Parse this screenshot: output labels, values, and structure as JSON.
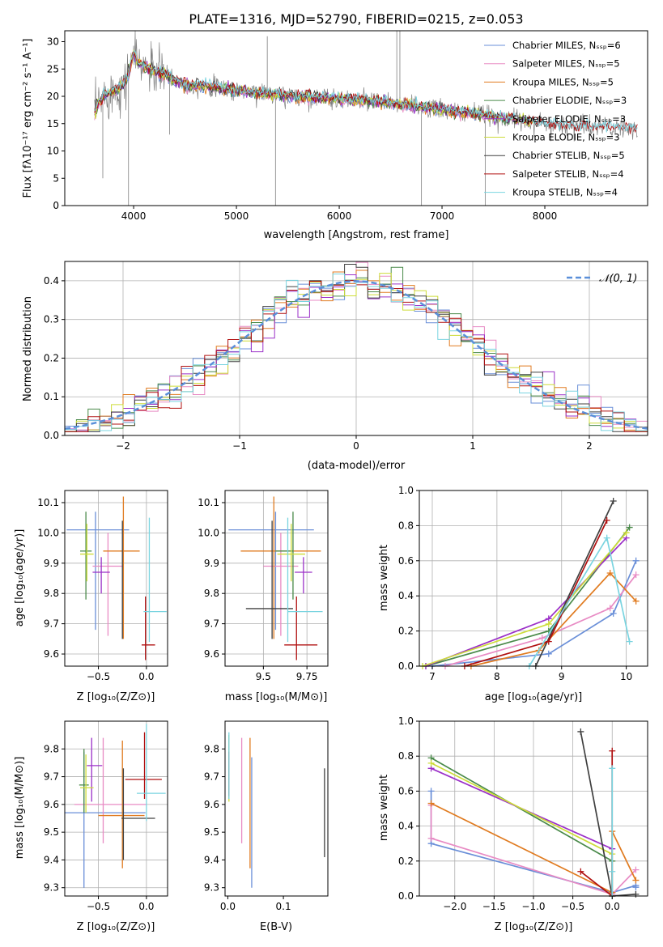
{
  "figure": {
    "title": "PLATE=1316, MJD=52790, FIBERID=0215, z=0.053"
  },
  "colors": {
    "series": [
      "#6a8fd8",
      "#e88bc4",
      "#e07b20",
      "#4a8a4a",
      "#9b30c8",
      "#cddc39",
      "#404040",
      "#b01010",
      "#7ad4e0"
    ],
    "data_line": "#808080",
    "gauss": "#5b8fd9",
    "grid": "#b0b0b0"
  },
  "chart_data": [
    {
      "id": "spectrum",
      "type": "line",
      "title": "PLATE=1316, MJD=52790, FIBERID=0215, z=0.053",
      "xlabel": "wavelength [Angstrom, rest frame]",
      "ylabel": "Flux [fλ10⁻¹⁷ erg cm⁻² s⁻¹ A⁻¹]",
      "xlim": [
        3330,
        9000
      ],
      "ylim": [
        0,
        32
      ],
      "xticks": [
        4000,
        5000,
        6000,
        7000,
        8000
      ],
      "yticks": [
        0,
        5,
        10,
        15,
        20,
        25,
        30
      ],
      "grid": false,
      "legend_position": "top-right",
      "legend": [
        "Chabrier MILES, N_SSP=6",
        "Salpeter MILES, N_SSP=5",
        "Kroupa MILES, N_SSP=5",
        "Chabrier ELODIE, N_SSP=3",
        "Salpeter ELODIE, N_SSP=3",
        "Kroupa ELODIE, N_SSP=3",
        "Chabrier STELIB, N_SSP=5",
        "Salpeter STELIB, N_SSP=4",
        "Kroupa STELIB, N_SSP=4"
      ],
      "continuum": {
        "x": [
          3620,
          3700,
          3800,
          3900,
          3950,
          4000,
          4050,
          4150,
          4300,
          4500,
          4700,
          5000,
          5300,
          5600,
          6000,
          6400,
          6800,
          7200,
          7600,
          8000,
          8400,
          8900
        ],
        "y": [
          17,
          20,
          21,
          22,
          24,
          28,
          26,
          25,
          24,
          22,
          22,
          21,
          20.5,
          20,
          19.5,
          19,
          18,
          17,
          16,
          15,
          14.5,
          14
        ]
      }
    },
    {
      "id": "residuals",
      "type": "histogram",
      "xlabel": "(data-model)/error",
      "ylabel": "Normed distribution",
      "xlim": [
        -2.5,
        2.5
      ],
      "ylim": [
        0,
        0.45
      ],
      "xticks": [
        -2,
        -1,
        0,
        1,
        2
      ],
      "yticks": [
        0.0,
        0.1,
        0.2,
        0.3,
        0.4
      ],
      "grid": true,
      "bin_width": 0.1,
      "legend_position": "top-right",
      "legend": [
        "𝒩(0, 1)"
      ]
    },
    {
      "id": "age-vs-Z",
      "type": "errorbar",
      "xlabel": "Z [log₁₀(Z/Z⊙)]",
      "ylabel": "age  [log₁₀(age/yr)]",
      "xlim": [
        -0.85,
        0.22
      ],
      "ylim": [
        9.56,
        10.14
      ],
      "xticks": [
        -0.5,
        0.0
      ],
      "yticks": [
        9.6,
        9.7,
        9.8,
        9.9,
        10.0,
        10.1
      ],
      "grid": true,
      "points": [
        {
          "x": -0.53,
          "y": 10.01,
          "xerr": [
            0.3,
            0.35
          ],
          "yerr": [
            0.33,
            0.06
          ]
        },
        {
          "x": -0.4,
          "y": 9.89,
          "xerr": [
            0.16,
            0.16
          ],
          "yerr": [
            0.23,
            0.11
          ]
        },
        {
          "x": -0.24,
          "y": 9.94,
          "xerr": [
            0.21,
            0.17
          ],
          "yerr": [
            0.29,
            0.18
          ]
        },
        {
          "x": -0.63,
          "y": 9.94,
          "xerr": [
            0.06,
            0.06
          ],
          "yerr": [
            0.16,
            0.13
          ]
        },
        {
          "x": -0.47,
          "y": 9.87,
          "xerr": [
            0.09,
            0.09
          ],
          "yerr": [
            0.07,
            0.05
          ]
        },
        {
          "x": -0.62,
          "y": 9.93,
          "xerr": [
            0.07,
            0.07
          ],
          "yerr": [
            0.09,
            0.1
          ]
        },
        {
          "x": -0.25,
          "y": 9.75,
          "xerr": [
            0.0,
            0.0
          ],
          "yerr": [
            0.1,
            0.29
          ]
        },
        {
          "x": -0.01,
          "y": 9.63,
          "xerr": [
            0.04,
            0.1
          ],
          "yerr": [
            0.05,
            0.16
          ]
        },
        {
          "x": 0.03,
          "y": 9.74,
          "xerr": [
            0.06,
            0.18
          ],
          "yerr": [
            0.1,
            0.31
          ]
        }
      ]
    },
    {
      "id": "age-vs-mass",
      "type": "errorbar",
      "xlabel": "mass [log₁₀(M/M⊙)]",
      "ylabel": "",
      "xlim": [
        9.28,
        9.87
      ],
      "ylim": [
        9.56,
        10.14
      ],
      "xticks": [
        9.5,
        9.75
      ],
      "yticks": [
        9.6,
        9.7,
        9.8,
        9.9,
        10.0,
        10.1
      ],
      "grid": true,
      "points": [
        {
          "x": 9.57,
          "y": 10.01,
          "xerr": [
            0.27,
            0.22
          ],
          "yerr": [
            0.33,
            0.06
          ]
        },
        {
          "x": 9.6,
          "y": 9.89,
          "xerr": [
            0.1,
            0.1
          ],
          "yerr": [
            0.23,
            0.11
          ]
        },
        {
          "x": 9.56,
          "y": 9.94,
          "xerr": [
            0.19,
            0.27
          ],
          "yerr": [
            0.29,
            0.18
          ]
        },
        {
          "x": 9.67,
          "y": 9.94,
          "xerr": [
            0.1,
            0.0
          ],
          "yerr": [
            0.16,
            0.13
          ]
        },
        {
          "x": 9.73,
          "y": 9.87,
          "xerr": [
            0.05,
            0.05
          ],
          "yerr": [
            0.07,
            0.05
          ]
        },
        {
          "x": 9.66,
          "y": 9.93,
          "xerr": [
            0.08,
            0.08
          ],
          "yerr": [
            0.09,
            0.1
          ]
        },
        {
          "x": 9.55,
          "y": 9.75,
          "xerr": [
            0.15,
            0.12
          ],
          "yerr": [
            0.1,
            0.29
          ]
        },
        {
          "x": 9.69,
          "y": 9.63,
          "xerr": [
            0.07,
            0.12
          ],
          "yerr": [
            0.05,
            0.16
          ]
        },
        {
          "x": 9.64,
          "y": 9.74,
          "xerr": [
            0.0,
            0.2
          ],
          "yerr": [
            0.1,
            0.31
          ]
        }
      ]
    },
    {
      "id": "weight-vs-age",
      "type": "line",
      "xlabel": "age  [log₁₀(age/yr)]",
      "ylabel": "mass weight",
      "xlim": [
        6.8,
        10.33
      ],
      "ylim": [
        0,
        1.0
      ],
      "xticks": [
        7,
        8,
        9,
        10
      ],
      "yticks": [
        0.0,
        0.2,
        0.4,
        0.6,
        0.8,
        1.0
      ],
      "grid": true,
      "series": [
        {
          "x": [
            7.0,
            8.8,
            9.8,
            10.15
          ],
          "y": [
            0.0,
            0.07,
            0.3,
            0.6
          ]
        },
        {
          "x": [
            7.2,
            8.7,
            9.75,
            10.15
          ],
          "y": [
            0.0,
            0.16,
            0.33,
            0.52
          ]
        },
        {
          "x": [
            7.6,
            8.65,
            9.75,
            10.15
          ],
          "y": [
            0.0,
            0.09,
            0.53,
            0.37
          ]
        },
        {
          "x": [
            6.9,
            8.8,
            10.05
          ],
          "y": [
            0.0,
            0.2,
            0.79
          ]
        },
        {
          "x": [
            6.9,
            8.8,
            10.0
          ],
          "y": [
            0.0,
            0.27,
            0.73
          ]
        },
        {
          "x": [
            6.85,
            8.8,
            10.0
          ],
          "y": [
            0.0,
            0.24,
            0.76
          ]
        },
        {
          "x": [
            8.6,
            9.8
          ],
          "y": [
            0.0,
            0.94
          ]
        },
        {
          "x": [
            7.5,
            8.8,
            9.7
          ],
          "y": [
            0.0,
            0.14,
            0.83
          ]
        },
        {
          "x": [
            8.5,
            9.7,
            10.05
          ],
          "y": [
            0.0,
            0.73,
            0.14
          ]
        }
      ]
    },
    {
      "id": "mass-vs-Z",
      "type": "errorbar",
      "xlabel": "Z [log₁₀(Z/Z⊙)]",
      "ylabel": "mass [log₁₀(M/M⊙)]",
      "xlim": [
        -0.85,
        0.22
      ],
      "ylim": [
        9.27,
        9.9
      ],
      "xticks": [
        -0.5,
        0.0
      ],
      "yticks": [
        9.3,
        9.4,
        9.5,
        9.6,
        9.7,
        9.8
      ],
      "grid": true,
      "points": [
        {
          "x": -0.65,
          "y": 9.57,
          "xerr": [
            0.2,
            0.64
          ],
          "yerr": [
            0.27,
            0.22
          ]
        },
        {
          "x": -0.45,
          "y": 9.6,
          "xerr": [
            0.3,
            0.45
          ],
          "yerr": [
            0.14,
            0.24
          ]
        },
        {
          "x": -0.25,
          "y": 9.56,
          "xerr": [
            0.25,
            0.23
          ],
          "yerr": [
            0.19,
            0.27
          ]
        },
        {
          "x": -0.65,
          "y": 9.67,
          "xerr": [
            0.05,
            0.05
          ],
          "yerr": [
            0.1,
            0.13
          ]
        },
        {
          "x": -0.57,
          "y": 9.74,
          "xerr": [
            0.05,
            0.11
          ],
          "yerr": [
            0.13,
            0.1
          ]
        },
        {
          "x": -0.63,
          "y": 9.66,
          "xerr": [
            0.06,
            0.08
          ],
          "yerr": [
            0.09,
            0.12
          ]
        },
        {
          "x": -0.24,
          "y": 9.55,
          "xerr": [
            0.02,
            0.33
          ],
          "yerr": [
            0.15,
            0.18
          ]
        },
        {
          "x": -0.02,
          "y": 9.69,
          "xerr": [
            0.2,
            0.18
          ],
          "yerr": [
            0.07,
            0.17
          ]
        },
        {
          "x": 0.0,
          "y": 9.64,
          "xerr": [
            0.1,
            0.2
          ],
          "yerr": [
            0.1,
            0.25
          ]
        }
      ]
    },
    {
      "id": "mass-vs-EBV",
      "type": "errorbar",
      "xlabel": "E(B-V)",
      "ylabel": "",
      "xlim": [
        -0.005,
        0.18
      ],
      "ylim": [
        9.27,
        9.9
      ],
      "xticks": [
        0.0,
        0.1
      ],
      "yticks": [
        9.3,
        9.4,
        9.5,
        9.6,
        9.7,
        9.8
      ],
      "grid": false,
      "points": [
        {
          "x": 0.043,
          "y": 9.54,
          "yerr": [
            0.24,
            0.23
          ]
        },
        {
          "x": 0.025,
          "y": 9.65,
          "yerr": [
            0.19,
            0.19
          ]
        },
        {
          "x": 0.04,
          "y": 9.57,
          "yerr": [
            0.2,
            0.27
          ]
        },
        {
          "x": 0.002,
          "y": 9.72,
          "yerr": [
            0.1,
            0.13
          ]
        },
        {
          "x": 0.002,
          "y": 9.73,
          "yerr": [
            0.1,
            0.11
          ]
        },
        {
          "x": 0.002,
          "y": 9.71,
          "yerr": [
            0.1,
            0.14
          ]
        },
        {
          "x": 0.174,
          "y": 9.56,
          "yerr": [
            0.15,
            0.17
          ]
        },
        {
          "x": 0.002,
          "y": 9.69,
          "yerr": [
            0.06,
            0.1
          ]
        },
        {
          "x": 0.002,
          "y": 9.74,
          "yerr": [
            0.12,
            0.12
          ]
        }
      ]
    },
    {
      "id": "weight-vs-Z",
      "type": "line",
      "xlabel": "Z [log₁₀(Z/Z⊙)]",
      "ylabel": "mass weight",
      "xlim": [
        -2.45,
        0.45
      ],
      "ylim": [
        0,
        1.0
      ],
      "xticks": [
        -2.0,
        -1.5,
        -1.0,
        -0.5,
        0.0
      ],
      "yticks": [
        0.0,
        0.2,
        0.4,
        0.6,
        0.8,
        1.0
      ],
      "grid": true,
      "series": [
        {
          "x": [
            -2.3,
            -2.3,
            0.0,
            0.3,
            0.3
          ],
          "y": [
            0.6,
            0.3,
            0.02,
            0.06,
            0.05
          ]
        },
        {
          "x": [
            -2.3,
            -2.3,
            0.0,
            0.3
          ],
          "y": [
            0.52,
            0.33,
            0.01,
            0.15
          ]
        },
        {
          "x": [
            -2.3,
            0.0,
            0.0,
            0.3
          ],
          "y": [
            0.53,
            0.02,
            0.37,
            0.09
          ]
        },
        {
          "x": [
            -2.3,
            0.0,
            0.0
          ],
          "y": [
            0.79,
            0.2,
            0.0
          ]
        },
        {
          "x": [
            -2.3,
            0.0,
            0.0
          ],
          "y": [
            0.73,
            0.27,
            0.0
          ]
        },
        {
          "x": [
            -2.3,
            0.0,
            0.0
          ],
          "y": [
            0.76,
            0.24,
            0.0
          ]
        },
        {
          "x": [
            -0.4,
            0.0,
            0.3
          ],
          "y": [
            0.94,
            0.0,
            0.01
          ]
        },
        {
          "x": [
            -0.4,
            0.0,
            0.0
          ],
          "y": [
            0.14,
            0.0,
            0.83
          ]
        },
        {
          "x": [
            0.0,
            0.0,
            0.0
          ],
          "y": [
            0.14,
            0.0,
            0.73
          ]
        }
      ]
    }
  ]
}
